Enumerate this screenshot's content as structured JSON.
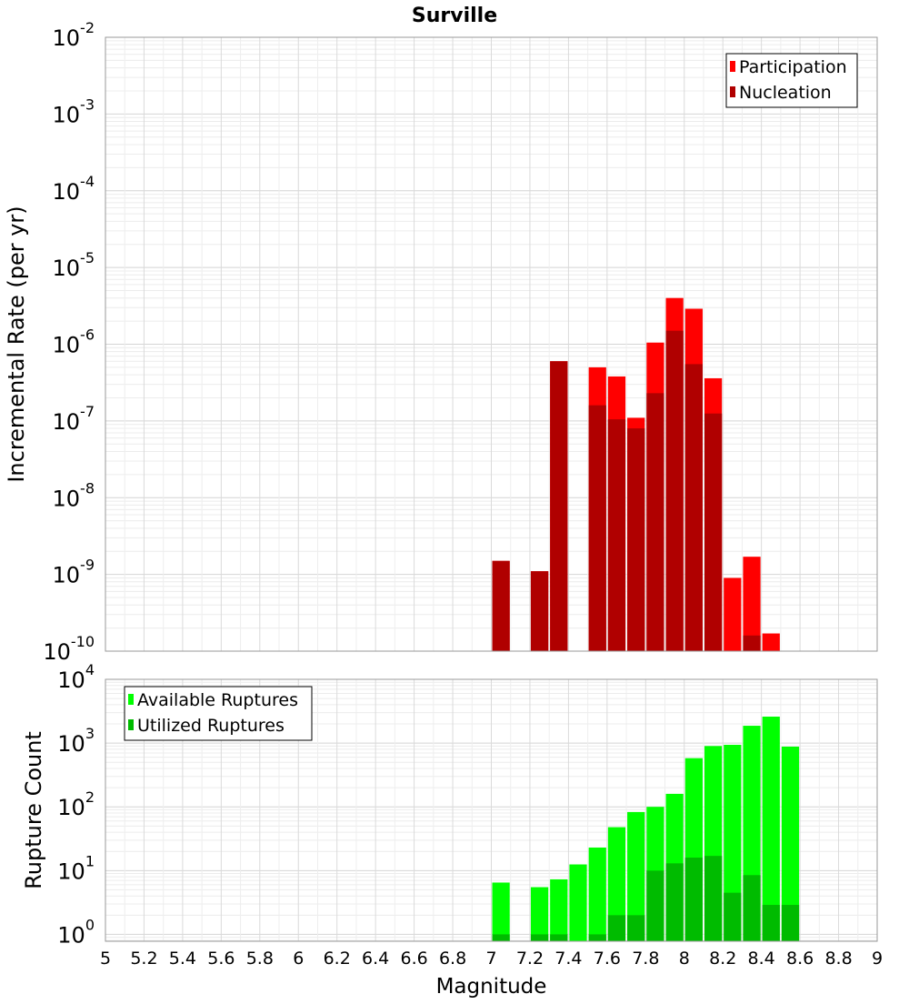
{
  "title": "Surville",
  "chart_data": [
    {
      "type": "bar",
      "panel": "top",
      "ylabel": "Incremental Rate (per yr)",
      "xlabel": "",
      "yscale": "log",
      "ylim": [
        1e-10,
        0.01
      ],
      "xlim": [
        5,
        9
      ],
      "grid": true,
      "legend_position": "top-right",
      "y_ticks": [
        {
          "base": "10",
          "exp": "-10",
          "value": 1e-10
        },
        {
          "base": "10",
          "exp": "-9",
          "value": 1e-09
        },
        {
          "base": "10",
          "exp": "-8",
          "value": 1e-08
        },
        {
          "base": "10",
          "exp": "-7",
          "value": 1e-07
        },
        {
          "base": "10",
          "exp": "-6",
          "value": 1e-06
        },
        {
          "base": "10",
          "exp": "-5",
          "value": 1e-05
        },
        {
          "base": "10",
          "exp": "-4",
          "value": 0.0001
        },
        {
          "base": "10",
          "exp": "-3",
          "value": 0.001
        },
        {
          "base": "10",
          "exp": "-2",
          "value": 0.01
        }
      ],
      "x": [
        7.05,
        7.15,
        7.25,
        7.35,
        7.45,
        7.55,
        7.65,
        7.75,
        7.85,
        7.95,
        8.05,
        8.15,
        8.25,
        8.35,
        8.45
      ],
      "series": [
        {
          "name": "Participation",
          "color": "#ff0000",
          "values": [
            1.5e-09,
            0,
            1.1e-09,
            6e-07,
            0,
            5e-07,
            3.8e-07,
            1.1e-07,
            1.05e-06,
            4e-06,
            2.9e-06,
            3.6e-07,
            9e-10,
            1.7e-09,
            1.7e-10
          ]
        },
        {
          "name": "Nucleation",
          "color": "#b00000",
          "values": [
            1.5e-09,
            0,
            1.1e-09,
            6e-07,
            0,
            1.6e-07,
            1.05e-07,
            8e-08,
            2.3e-07,
            1.5e-06,
            5.5e-07,
            1.25e-07,
            0,
            1.6e-10,
            0
          ]
        }
      ]
    },
    {
      "type": "bar",
      "panel": "bottom",
      "ylabel": "Rupture Count",
      "xlabel": "Magnitude",
      "yscale": "log",
      "ylim": [
        0.78,
        10000.0
      ],
      "xlim": [
        5,
        9
      ],
      "grid": true,
      "legend_position": "top-left",
      "y_ticks": [
        {
          "base": "10",
          "exp": "0",
          "value": 1
        },
        {
          "base": "10",
          "exp": "1",
          "value": 10
        },
        {
          "base": "10",
          "exp": "2",
          "value": 100
        },
        {
          "base": "10",
          "exp": "3",
          "value": 1000
        },
        {
          "base": "10",
          "exp": "4",
          "value": 10000
        }
      ],
      "x_ticks": [
        "5",
        "5.2",
        "5.4",
        "5.6",
        "5.8",
        "6",
        "6.2",
        "6.4",
        "6.6",
        "6.8",
        "7",
        "7.2",
        "7.4",
        "7.6",
        "7.8",
        "8",
        "8.2",
        "8.4",
        "8.6",
        "8.8",
        "9"
      ],
      "x": [
        7.05,
        7.15,
        7.25,
        7.35,
        7.45,
        7.55,
        7.65,
        7.75,
        7.85,
        7.95,
        8.05,
        8.15,
        8.25,
        8.35,
        8.45,
        8.55
      ],
      "series": [
        {
          "name": "Available Ruptures",
          "color": "#00ff00",
          "values": [
            6.5,
            0,
            5.5,
            7.3,
            12.5,
            23,
            48,
            83,
            100,
            160,
            580,
            900,
            940,
            1870,
            2600,
            880
          ]
        },
        {
          "name": "Utilized Ruptures",
          "color": "#00bb00",
          "values": [
            1,
            0,
            1,
            1,
            0,
            1,
            2,
            2,
            10,
            13,
            16,
            17,
            4.5,
            8.5,
            2.9,
            2.9
          ]
        }
      ]
    }
  ]
}
